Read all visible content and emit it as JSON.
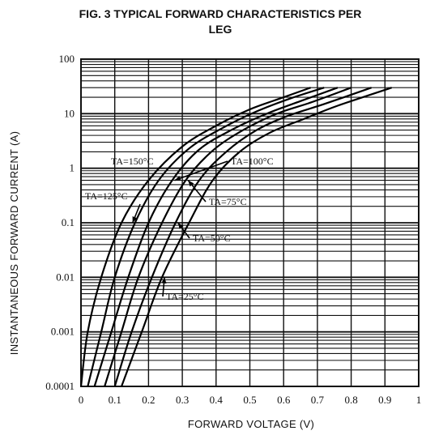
{
  "chart_data": {
    "type": "line",
    "title_line1": "FIG. 3 TYPICAL FORWARD CHARACTERISTICS PER",
    "title_line2": "LEG",
    "xlabel": "FORWARD VOLTAGE (V)",
    "ylabel": "INSTANTANEOUS FORWARD CURRENT (A)",
    "xlim": [
      0,
      1.0
    ],
    "ylim": [
      0.0001,
      100
    ],
    "yscale": "log",
    "grid": true,
    "x_ticks": [
      "0",
      "0.1",
      "0.2",
      "0.3",
      "0.4",
      "0.5",
      "0.6",
      "0.7",
      "0.8",
      "0.9",
      "1"
    ],
    "y_ticks": [
      "0.0001",
      "0.001",
      "0.01",
      "0.1",
      "1",
      "10",
      "100"
    ],
    "series": [
      {
        "name": "TA=150°C",
        "x": [
          0.0,
          0.02,
          0.06,
          0.12,
          0.2,
          0.3,
          0.4,
          0.5,
          0.6,
          0.68
        ],
        "y": [
          0.0001,
          0.001,
          0.01,
          0.1,
          0.6,
          2.5,
          6,
          12,
          20,
          30
        ]
      },
      {
        "name": "TA=125°C",
        "x": [
          0.02,
          0.06,
          0.1,
          0.16,
          0.23,
          0.32,
          0.42,
          0.52,
          0.62,
          0.72
        ],
        "y": [
          0.0001,
          0.001,
          0.01,
          0.1,
          0.6,
          2.3,
          5.5,
          11,
          19,
          30
        ]
      },
      {
        "name": "TA=100°C",
        "x": [
          0.04,
          0.09,
          0.14,
          0.2,
          0.27,
          0.35,
          0.45,
          0.55,
          0.65,
          0.76
        ],
        "y": [
          0.0001,
          0.001,
          0.01,
          0.1,
          0.6,
          2.2,
          5.2,
          10,
          17,
          30
        ]
      },
      {
        "name": "TA=75°C",
        "x": [
          0.07,
          0.12,
          0.17,
          0.24,
          0.31,
          0.39,
          0.48,
          0.58,
          0.68,
          0.8
        ],
        "y": [
          0.0001,
          0.001,
          0.01,
          0.1,
          0.6,
          2.1,
          5,
          10,
          16,
          30
        ]
      },
      {
        "name": "TA=50°C",
        "x": [
          0.1,
          0.15,
          0.21,
          0.28,
          0.35,
          0.43,
          0.52,
          0.61,
          0.72,
          0.86
        ],
        "y": [
          0.0001,
          0.001,
          0.01,
          0.1,
          0.6,
          2.0,
          5,
          9,
          15,
          30
        ]
      },
      {
        "name": "TA=25°C",
        "x": [
          0.12,
          0.18,
          0.24,
          0.32,
          0.39,
          0.47,
          0.56,
          0.66,
          0.76,
          0.92
        ],
        "y": [
          0.0001,
          0.001,
          0.01,
          0.1,
          0.6,
          2.0,
          4.5,
          8,
          14,
          30
        ]
      }
    ],
    "annotations": [
      {
        "text": "TA=150°C",
        "points_to_series": "TA=150°C"
      },
      {
        "text": "TA=100°C",
        "points_to_series": "TA=100°C"
      },
      {
        "text": "TA=125°C",
        "points_to_series": "TA=125°C"
      },
      {
        "text": "TA=75°C",
        "points_to_series": "TA=75°C"
      },
      {
        "text": "TA=50°C",
        "points_to_series": "TA=50°C"
      },
      {
        "text": "TA=25°C",
        "points_to_series": "TA=25°C"
      }
    ]
  }
}
